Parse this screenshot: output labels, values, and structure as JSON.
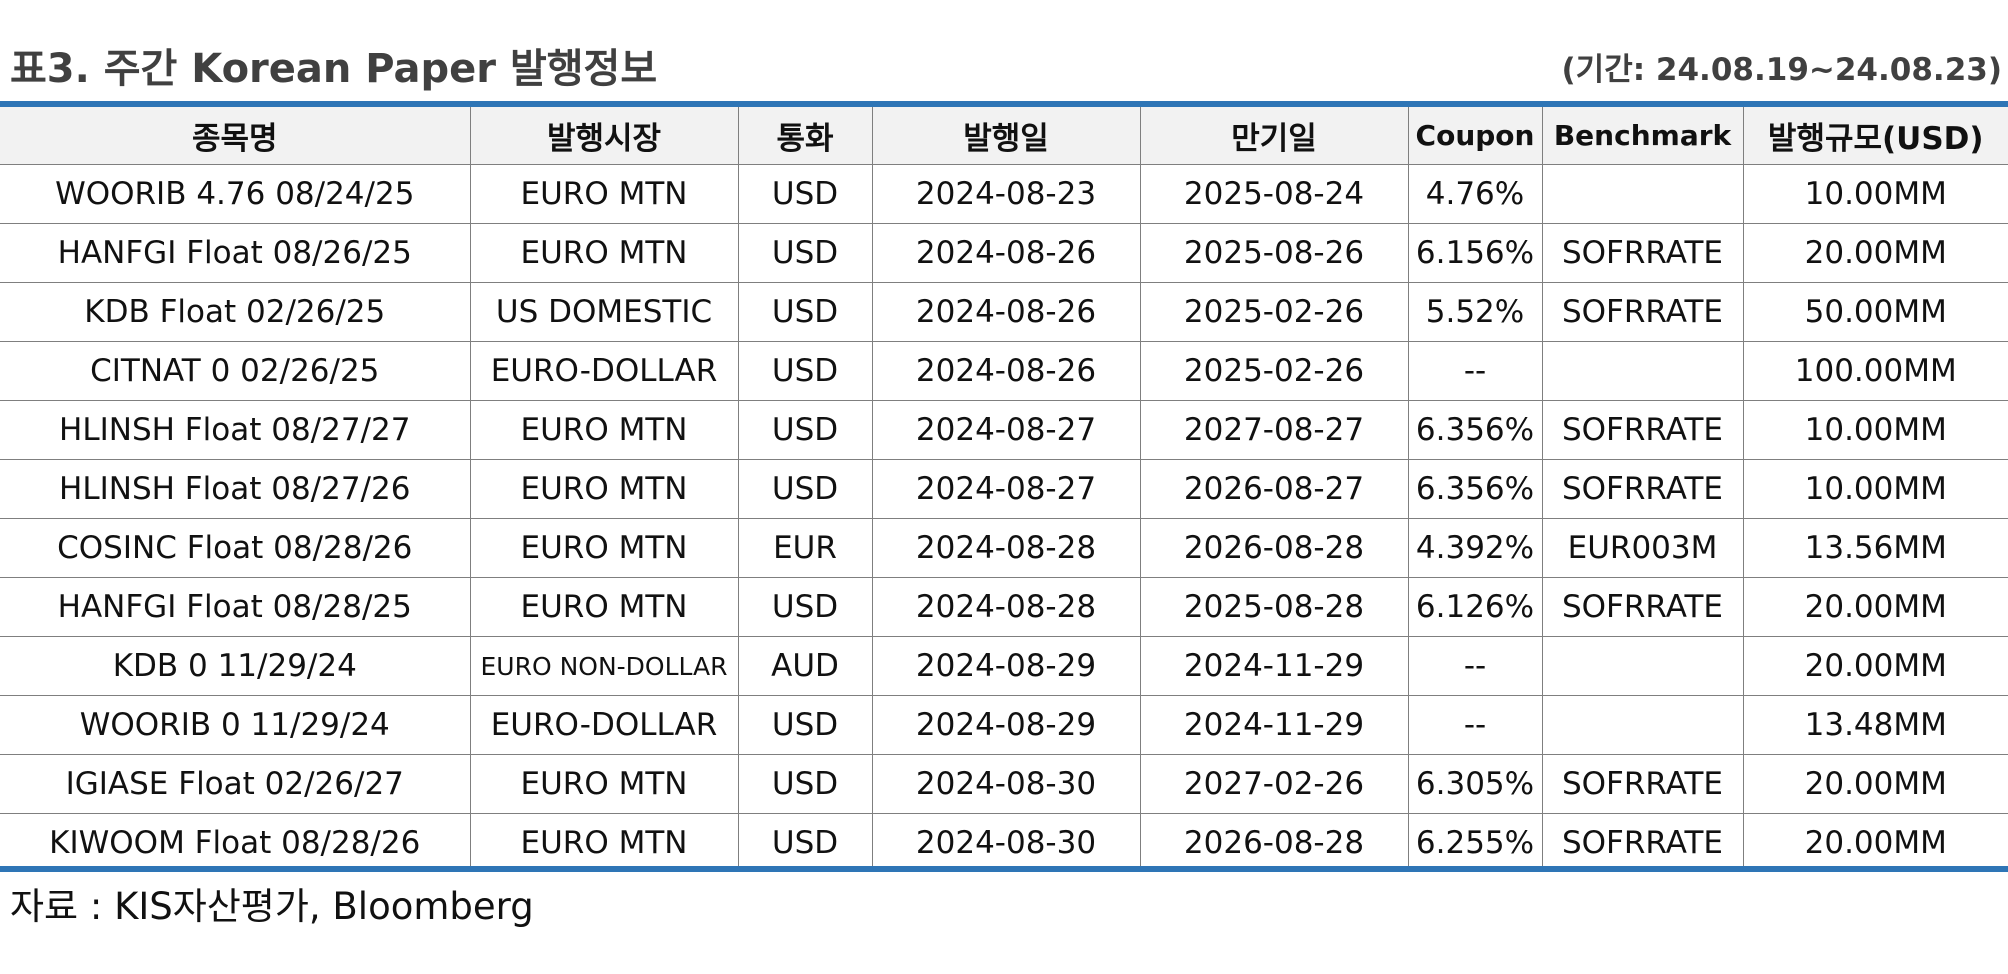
{
  "title": "표3. 주간 Korean Paper 발행정보",
  "period": "(기간: 24.08.19~24.08.23)",
  "columns": [
    "종목명",
    "발행시장",
    "통화",
    "발행일",
    "만기일",
    "Coupon",
    "Benchmark",
    "발행규모(USD)"
  ],
  "rows": [
    [
      "WOORIB 4.76 08/24/25",
      "EURO MTN",
      "USD",
      "2024-08-23",
      "2025-08-24",
      "4.76%",
      "",
      "10.00MM"
    ],
    [
      "HANFGI Float 08/26/25",
      "EURO MTN",
      "USD",
      "2024-08-26",
      "2025-08-26",
      "6.156%",
      "SOFRRATE",
      "20.00MM"
    ],
    [
      "KDB Float 02/26/25",
      "US DOMESTIC",
      "USD",
      "2024-08-26",
      "2025-02-26",
      "5.52%",
      "SOFRRATE",
      "50.00MM"
    ],
    [
      "CITNAT 0 02/26/25",
      "EURO-DOLLAR",
      "USD",
      "2024-08-26",
      "2025-02-26",
      "--",
      "",
      "100.00MM"
    ],
    [
      "HLINSH Float 08/27/27",
      "EURO MTN",
      "USD",
      "2024-08-27",
      "2027-08-27",
      "6.356%",
      "SOFRRATE",
      "10.00MM"
    ],
    [
      "HLINSH Float 08/27/26",
      "EURO MTN",
      "USD",
      "2024-08-27",
      "2026-08-27",
      "6.356%",
      "SOFRRATE",
      "10.00MM"
    ],
    [
      "COSINC Float 08/28/26",
      "EURO MTN",
      "EUR",
      "2024-08-28",
      "2026-08-28",
      "4.392%",
      "EUR003M",
      "13.56MM"
    ],
    [
      "HANFGI Float 08/28/25",
      "EURO MTN",
      "USD",
      "2024-08-28",
      "2025-08-28",
      "6.126%",
      "SOFRRATE",
      "20.00MM"
    ],
    [
      "KDB 0 11/29/24",
      "EURO NON-DOLLAR",
      "AUD",
      "2024-08-29",
      "2024-11-29",
      "--",
      "",
      "20.00MM"
    ],
    [
      "WOORIB 0 11/29/24",
      "EURO-DOLLAR",
      "USD",
      "2024-08-29",
      "2024-11-29",
      "--",
      "",
      "13.48MM"
    ],
    [
      "IGIASE Float 02/26/27",
      "EURO MTN",
      "USD",
      "2024-08-30",
      "2027-02-26",
      "6.305%",
      "SOFRRATE",
      "20.00MM"
    ],
    [
      "KIWOOM Float 08/28/26",
      "EURO MTN",
      "USD",
      "2024-08-30",
      "2026-08-28",
      "6.255%",
      "SOFRRATE",
      "20.00MM"
    ]
  ],
  "source": "자료 : KIS자산평가, Bloomberg",
  "colors": {
    "accent_rule": "#2e75b6",
    "header_bg": "#f2f2f2",
    "title_text": "#404040"
  }
}
